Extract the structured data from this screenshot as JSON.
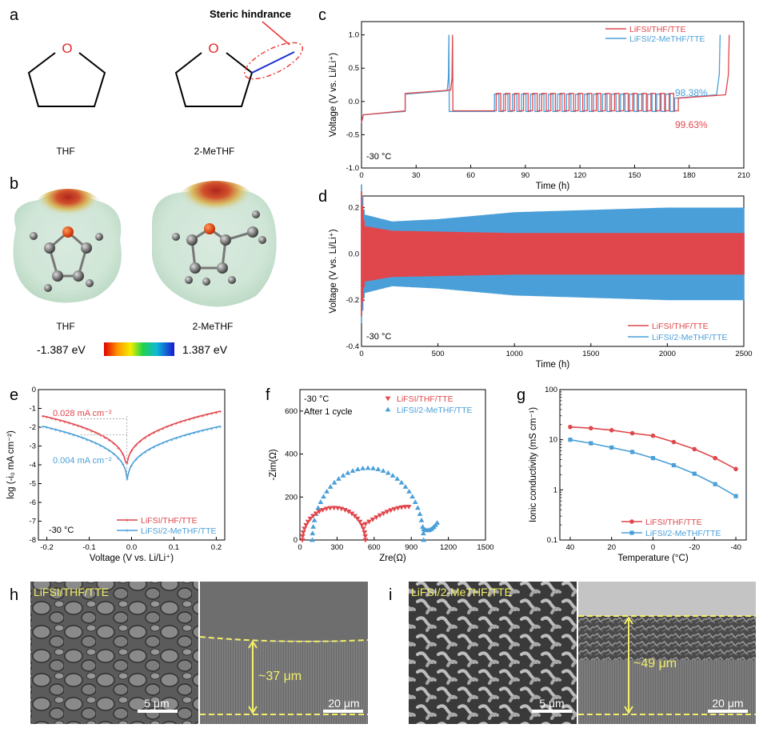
{
  "panel_letters": {
    "a": "a",
    "b": "b",
    "c": "c",
    "d": "d",
    "e": "e",
    "f": "f",
    "g": "g",
    "h": "h",
    "i": "i"
  },
  "panel_a": {
    "molecule_1": "THF",
    "molecule_2": "2-MeTHF",
    "oxygen": "O",
    "annotation": "Steric hindrance"
  },
  "panel_b": {
    "molecule_1": "THF",
    "molecule_2": "2-MeTHF",
    "scale_min": "-1.387 eV",
    "scale_max": "1.387 eV"
  },
  "colors": {
    "red": "#e0474c",
    "blue": "#4a9fd8",
    "sem_label": "#f2ee6a"
  },
  "chart_data": [
    {
      "id": "c",
      "type": "line",
      "xlabel": "Time (h)",
      "ylabel": "Voltage (V vs. Li/Li⁺)",
      "xlim": [
        0,
        210
      ],
      "ylim": [
        -1.0,
        1.2
      ],
      "xticks": [
        0,
        30,
        60,
        90,
        120,
        150,
        180,
        210
      ],
      "yticks": [
        -1.0,
        -0.5,
        0.0,
        0.5,
        1.0
      ],
      "annotations": [
        "-30 °C",
        "98.38%",
        "99.63%"
      ],
      "series": [
        {
          "name": "LiFSI/THF/TTE",
          "color": "#e0474c",
          "stripping_end_h": 50,
          "cycle_start_h": 74,
          "cycle_end_h": 174,
          "final_end_h": 202,
          "plating_v": -0.14,
          "stripping_v": 0.12,
          "efficiency": "99.63%"
        },
        {
          "name": "LiFSI/2-MeTHF/TTE",
          "color": "#4a9fd8",
          "stripping_end_h": 48,
          "cycle_start_h": 73,
          "cycle_end_h": 172,
          "final_end_h": 197,
          "plating_v": -0.15,
          "stripping_v": 0.11,
          "efficiency": "98.38%"
        }
      ]
    },
    {
      "id": "d",
      "type": "line",
      "xlabel": "Time (h)",
      "ylabel": "Voltage (V vs. Li/Li⁺)",
      "xlim": [
        0,
        2500
      ],
      "ylim": [
        -0.4,
        0.25
      ],
      "xticks": [
        0,
        500,
        1000,
        1500,
        2000,
        2500
      ],
      "yticks": [
        -0.4,
        -0.2,
        0.0,
        0.2
      ],
      "annotations": [
        "-30 °C"
      ],
      "series": [
        {
          "name": "LiFSI/THF/TTE",
          "color": "#e0474c",
          "envelope": [
            [
              0,
              0.27
            ],
            [
              20,
              0.12
            ],
            [
              200,
              0.1
            ],
            [
              1000,
              0.09
            ],
            [
              2500,
              0.09
            ]
          ]
        },
        {
          "name": "LiFSI/2-MeTHF/TTE",
          "color": "#4a9fd8",
          "envelope": [
            [
              0,
              0.3
            ],
            [
              20,
              0.17
            ],
            [
              200,
              0.14
            ],
            [
              500,
              0.15
            ],
            [
              1000,
              0.18
            ],
            [
              1500,
              0.19
            ],
            [
              2000,
              0.2
            ],
            [
              2500,
              0.2
            ]
          ]
        }
      ]
    },
    {
      "id": "e",
      "type": "line",
      "xlabel": "Voltage (V vs. Li/Li⁺)",
      "ylabel": "log (-i₀ mA cm⁻²)",
      "xlim": [
        -0.22,
        0.22
      ],
      "ylim": [
        -8,
        0
      ],
      "xticks": [
        -0.2,
        -0.1,
        0.0,
        0.1,
        0.2
      ],
      "yticks": [
        -8,
        -7,
        -6,
        -5,
        -4,
        -3,
        -2,
        -1,
        0
      ],
      "annotations": [
        "0.028 mA cm⁻²",
        "0.004 mA cm⁻²",
        "-30 °C"
      ],
      "series": [
        {
          "name": "LiFSI/THF/TTE",
          "color": "#e0474c",
          "e0": -0.012,
          "i0_log": -1.55,
          "left_end": -1.4,
          "right_end": -1.15,
          "min": -4.6
        },
        {
          "name": "LiFSI/2-MeTHF/TTE",
          "color": "#4a9fd8",
          "e0": -0.01,
          "i0_log": -2.4,
          "left_end": -1.95,
          "right_end": -1.95,
          "min": -5.25
        }
      ]
    },
    {
      "id": "f",
      "type": "scatter",
      "xlabel": "Zre(Ω)",
      "ylabel": "-Zim(Ω)",
      "xlim": [
        0,
        1500
      ],
      "ylim": [
        0,
        700
      ],
      "xticks": [
        0,
        300,
        600,
        900,
        1200,
        1500
      ],
      "yticks": [
        0,
        200,
        400,
        600
      ],
      "annotations": [
        "-30 °C",
        "After 1 cycle"
      ],
      "series": [
        {
          "name": "LiFSI/THF/TTE",
          "color": "#e0474c",
          "marker": "triangle-down",
          "arc1": [
            20,
            530
          ],
          "arc1_peak": 150,
          "arc2": [
            530,
            880
          ],
          "arc2_peak": 155
        },
        {
          "name": "LiFSI/2-MeTHF/TTE",
          "color": "#4a9fd8",
          "marker": "triangle-up",
          "arc1": [
            100,
            1000
          ],
          "arc1_peak": 335,
          "tail": [
            1000,
            1110
          ]
        }
      ]
    },
    {
      "id": "g",
      "type": "line",
      "xlabel": "Temperature (°C)",
      "ylabel": "Ionic conductivity (mS cm⁻¹)",
      "yscale": "log",
      "xlim": [
        45,
        -45
      ],
      "ylim": [
        0.1,
        100
      ],
      "xticks": [
        40,
        20,
        0,
        -20,
        -40
      ],
      "yticks": [
        0.1,
        1,
        10,
        100
      ],
      "x": [
        40,
        30,
        20,
        10,
        0,
        -10,
        -20,
        -30,
        -40
      ],
      "series": [
        {
          "name": "LiFSI/THF/TTE",
          "color": "#e0474c",
          "marker": "circle",
          "values": [
            18.0,
            17.0,
            15.5,
            13.5,
            12.0,
            9.0,
            6.5,
            4.3,
            2.6
          ]
        },
        {
          "name": "LiFSI/2-MeTHF/TTE",
          "color": "#4a9fd8",
          "marker": "square",
          "values": [
            10.0,
            8.5,
            7.0,
            5.7,
            4.3,
            3.1,
            2.1,
            1.3,
            0.75
          ]
        }
      ]
    }
  ],
  "panel_h": {
    "label": "LiFSI/THF/TTE",
    "scale_left": "5 μm",
    "scale_right": "20 μm",
    "thickness": "~37 μm"
  },
  "panel_i": {
    "label": "LiFSI/2-MeTHF/TTE",
    "scale_left": "5 μm",
    "scale_right": "20 μm",
    "thickness": "~49 μm"
  }
}
